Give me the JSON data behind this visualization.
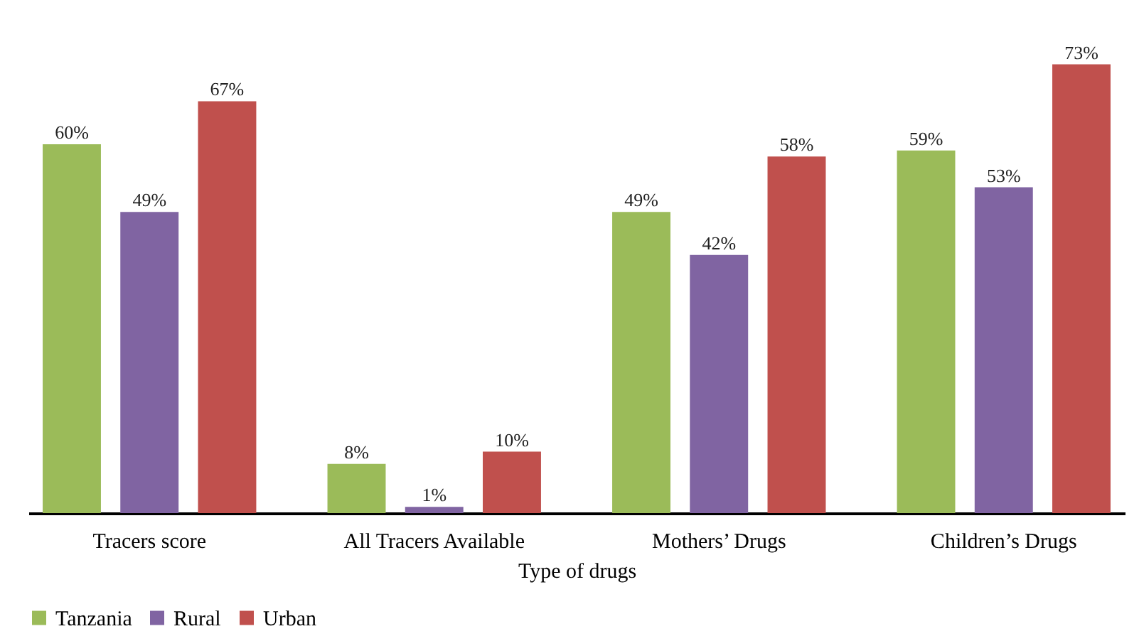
{
  "chart_data": {
    "type": "bar",
    "xlabel": "Type of drugs",
    "categories": [
      "Tracers score",
      "All Tracers Available",
      "Mothers’ Drugs",
      "Children’s Drugs"
    ],
    "series": [
      {
        "name": "Tanzania",
        "color": "#9bbb59",
        "values": [
          60,
          8,
          49,
          59
        ],
        "value_labels": [
          "60%",
          "8%",
          "49%",
          "59%"
        ]
      },
      {
        "name": "Rural",
        "color": "#8064a2",
        "values": [
          49,
          1,
          42,
          53
        ],
        "value_labels": [
          "49%",
          "1%",
          "42%",
          "53%"
        ]
      },
      {
        "name": "Urban",
        "color": "#c0504d",
        "values": [
          67,
          10,
          58,
          73
        ],
        "value_labels": [
          "67%",
          "10%",
          "58%",
          "73%"
        ]
      }
    ],
    "legend": "bottom",
    "tick_labels": "x"
  }
}
